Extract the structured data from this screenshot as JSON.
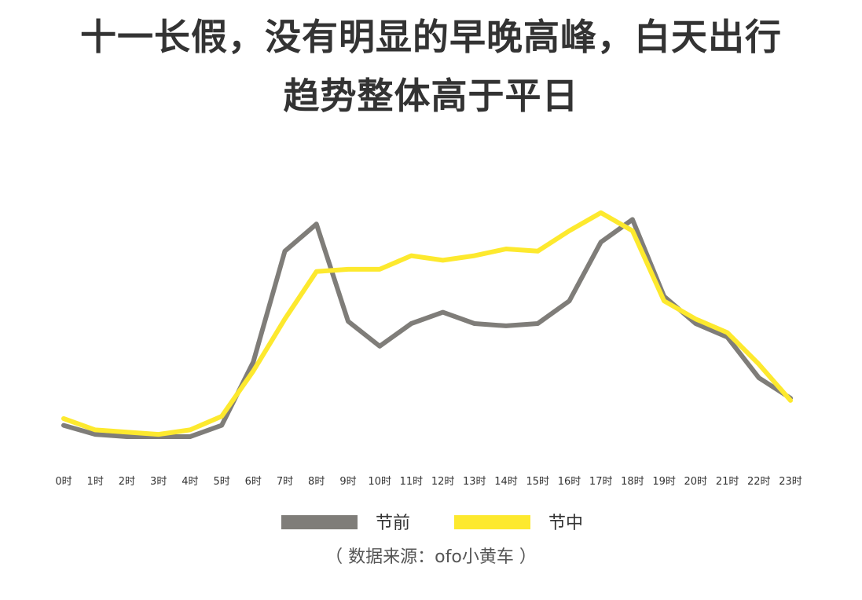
{
  "title": {
    "line1": "十一长假，没有明显的早晚高峰，白天出行",
    "line2": "趋势整体高于平日"
  },
  "source": "（ 数据来源：ofo小黄车 ）",
  "chart_data": {
    "type": "line",
    "title": "十一长假，没有明显的早晚高峰，白天出行趋势整体高于平日",
    "x": [
      "0时",
      "1时",
      "2时",
      "3时",
      "4时",
      "5时",
      "6时",
      "7时",
      "8时",
      "9时",
      "10时",
      "11时",
      "12时",
      "13时",
      "14时",
      "15时",
      "16时",
      "17时",
      "18时",
      "19时",
      "20时",
      "21时",
      "22时",
      "23时"
    ],
    "xlabel": "",
    "ylabel": "",
    "ylim": [
      0,
      100
    ],
    "y_axis_shown": false,
    "grid": false,
    "legend_position": "bottom",
    "series": [
      {
        "name": "节前",
        "color": "#7f7d79",
        "values": [
          5,
          1,
          0,
          0,
          0,
          5,
          33,
          82,
          94,
          51,
          40,
          50,
          55,
          50,
          49,
          50,
          60,
          86,
          96,
          62,
          50,
          44,
          26,
          17
        ]
      },
      {
        "name": "节中",
        "color": "#fde92e",
        "values": [
          8,
          3,
          2,
          1,
          3,
          9,
          29,
          52,
          73,
          74,
          74,
          80,
          78,
          80,
          83,
          82,
          91,
          99,
          91,
          60,
          52,
          46,
          32,
          16
        ]
      }
    ]
  }
}
